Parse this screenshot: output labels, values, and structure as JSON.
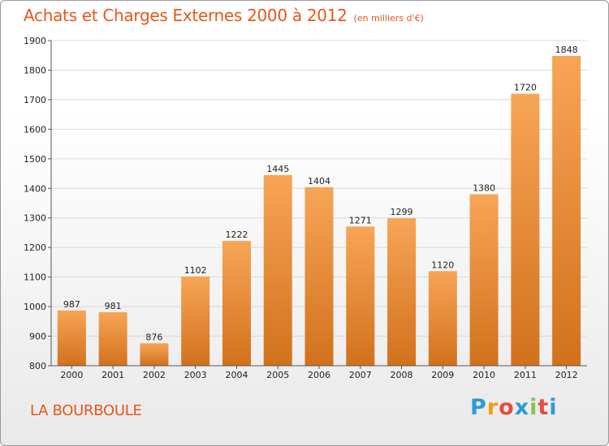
{
  "title": "Achats et Charges Externes 2000 à 2012",
  "subtitle": "(en milliers d'€)",
  "location": "LA BOURBOULE",
  "logo": {
    "text": "Proxiti",
    "letters": [
      {
        "ch": "P",
        "color": "#2a9bd6"
      },
      {
        "ch": "r",
        "color": "#f39c12"
      },
      {
        "ch": "o",
        "color": "#e74c3c"
      },
      {
        "ch": "x",
        "color": "#2a9bd6"
      },
      {
        "ch": "i",
        "color": "#8bc34a"
      },
      {
        "ch": "t",
        "color": "#e74c3c"
      },
      {
        "ch": "i",
        "color": "#2a9bd6"
      }
    ]
  },
  "colors": {
    "title": "#e8561a",
    "bar_top": "#f7a556",
    "bar_bottom": "#d2711c"
  },
  "chart_data": {
    "type": "bar",
    "categories": [
      "2000",
      "2001",
      "2002",
      "2003",
      "2004",
      "2005",
      "2006",
      "2007",
      "2008",
      "2009",
      "2010",
      "2011",
      "2012"
    ],
    "values": [
      987,
      981,
      876,
      1102,
      1222,
      1445,
      1404,
      1271,
      1299,
      1120,
      1380,
      1720,
      1848
    ],
    "title": "Achats et Charges Externes 2000 à 2012",
    "ylim": [
      800,
      1900
    ],
    "yticks": [
      800,
      900,
      1000,
      1100,
      1200,
      1300,
      1400,
      1500,
      1600,
      1700,
      1800,
      1900
    ],
    "grid": true
  }
}
